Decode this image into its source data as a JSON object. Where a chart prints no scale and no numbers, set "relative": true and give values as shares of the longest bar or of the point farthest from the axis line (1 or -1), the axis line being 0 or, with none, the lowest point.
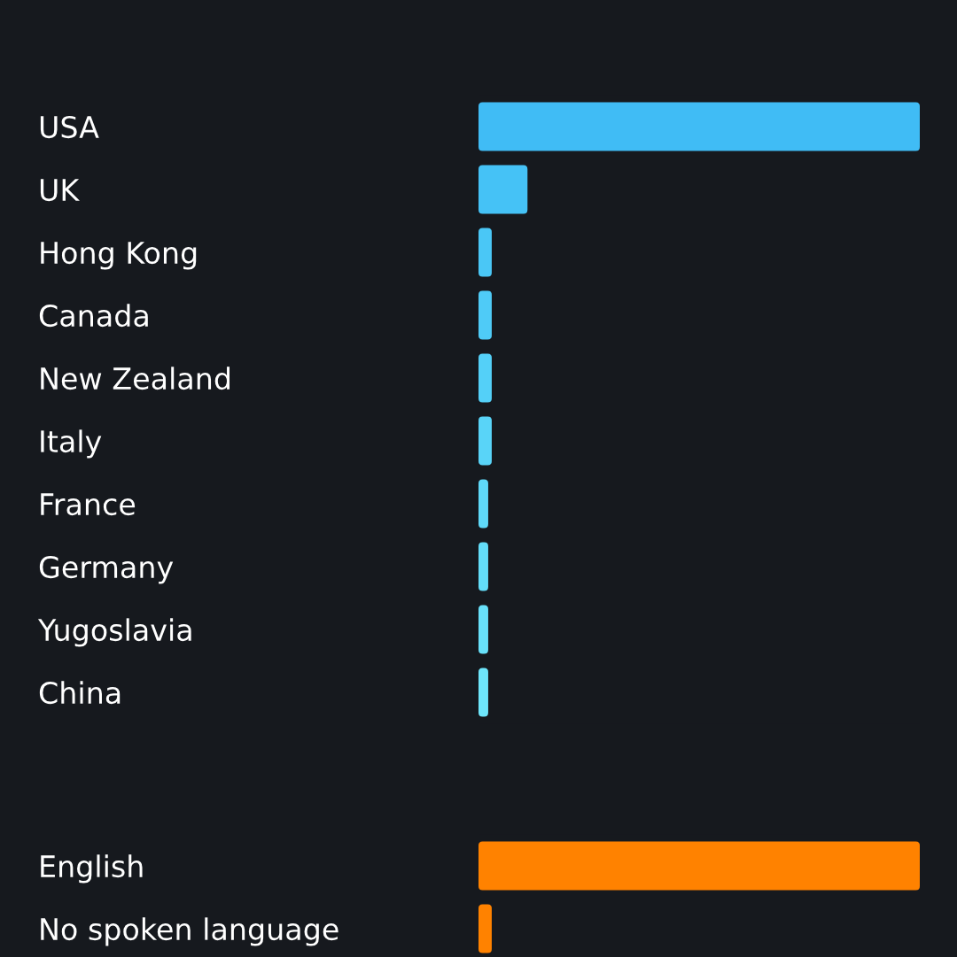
{
  "chart_data": [
    {
      "type": "bar",
      "orientation": "horizontal",
      "relative": true,
      "categories": [
        "USA",
        "UK",
        "Hong Kong",
        "Canada",
        "New Zealand",
        "Italy",
        "France",
        "Germany",
        "Yugoslavia",
        "China"
      ],
      "values": [
        1,
        0.111,
        0.03,
        0.03,
        0.03,
        0.03,
        0.022,
        0.022,
        0.022,
        0.022
      ],
      "colors": [
        "#40bcf5",
        "#45c2f6",
        "#4ac7f6",
        "#4fcbf7",
        "#54d0f8",
        "#59d4f8",
        "#5fd9f9",
        "#63ddf9",
        "#68e1fa",
        "#6ee6fb"
      ]
    },
    {
      "type": "bar",
      "orientation": "horizontal",
      "relative": true,
      "categories": [
        "English",
        "No spoken language"
      ],
      "values": [
        1,
        0.03
      ],
      "colors": [
        "#ff8200",
        "#ff8200"
      ]
    }
  ]
}
